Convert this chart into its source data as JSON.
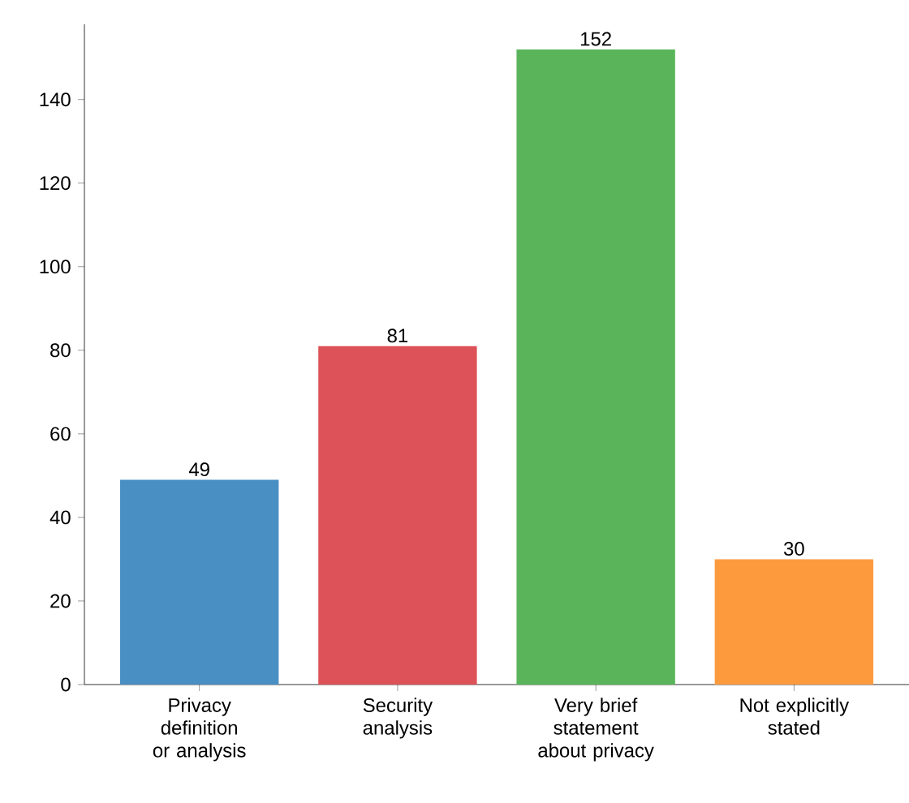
{
  "chart_data": {
    "type": "bar",
    "categories": [
      "Privacy definition or analysis",
      "Security analysis",
      "Very brief statement about privacy",
      "Not explicitly stated"
    ],
    "values": [
      49,
      81,
      152,
      30
    ],
    "colors": [
      "#4a8fc4",
      "#dc5258",
      "#5ab55a",
      "#fd9a3e"
    ],
    "ylim": [
      0,
      158
    ],
    "yticks": [
      0,
      20,
      40,
      60,
      80,
      100,
      120,
      140
    ],
    "data_labels": true
  }
}
